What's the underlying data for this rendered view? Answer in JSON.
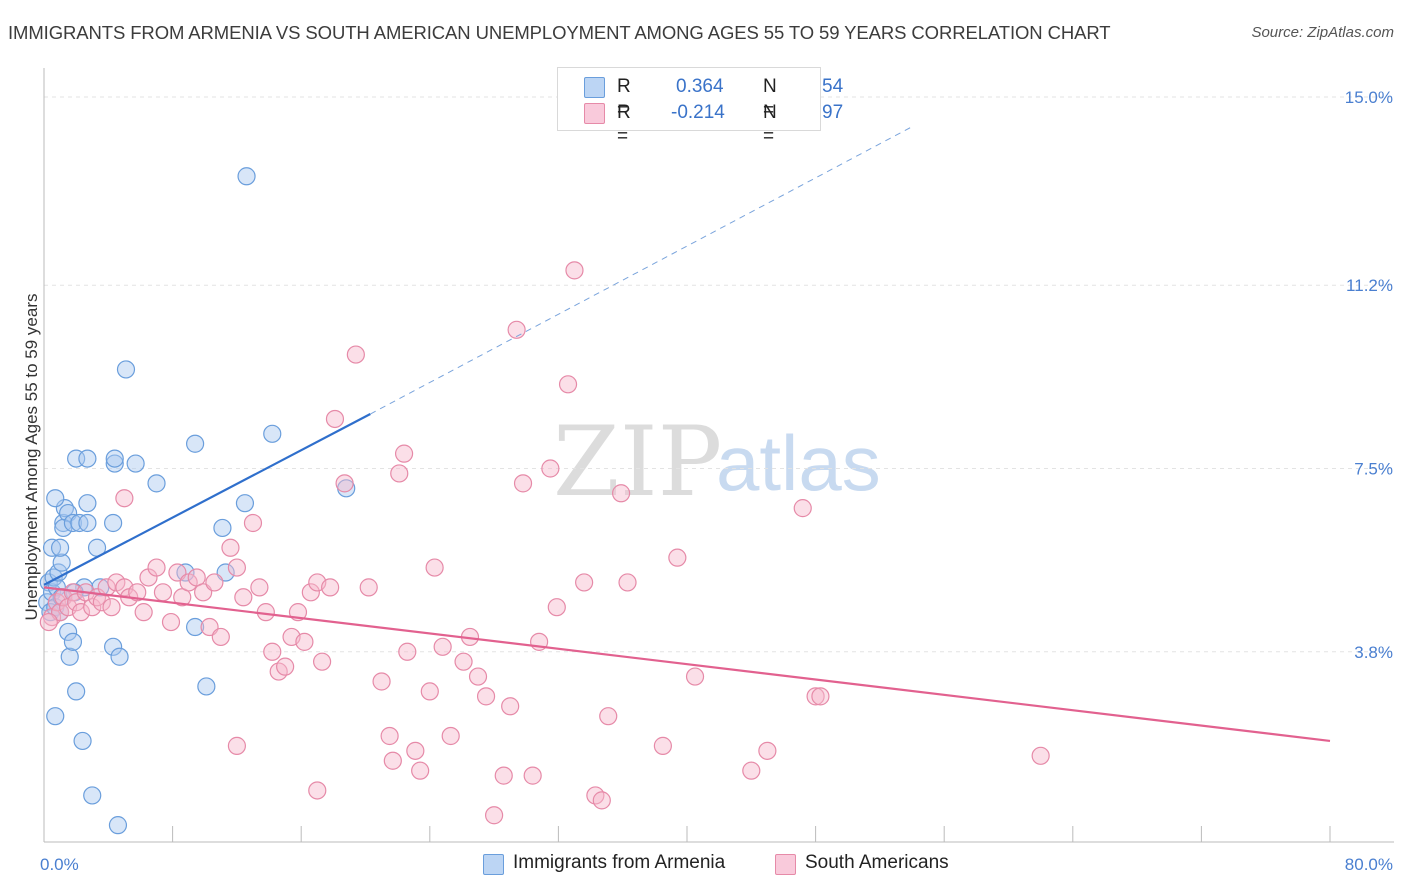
{
  "title": "IMMIGRANTS FROM ARMENIA VS SOUTH AMERICAN UNEMPLOYMENT AMONG AGES 55 TO 59 YEARS CORRELATION CHART",
  "source": "Source: ZipAtlas.com",
  "watermark": {
    "zip": "ZIP",
    "atlas": "atlas"
  },
  "legend": {
    "r_label": "R =",
    "n_label": "N =",
    "rows": [
      {
        "r": "0.364",
        "n": "54",
        "color": "#a8c8f0",
        "stroke": "#6a9edc"
      },
      {
        "r": "-0.214",
        "n": "97",
        "color": "#f7b8cc",
        "stroke": "#e68aa8"
      }
    ]
  },
  "bottom_legend": [
    {
      "label": "Immigrants from Armenia",
      "color": "#a8c8f0",
      "stroke": "#6a9edc"
    },
    {
      "label": "South Americans",
      "color": "#f7b8cc",
      "stroke": "#e68aa8"
    }
  ],
  "chart_data": {
    "type": "scatter",
    "title": "IMMIGRANTS FROM ARMENIA VS SOUTH AMERICAN UNEMPLOYMENT AMONG AGES 55 TO 59 YEARS CORRELATION CHART",
    "xlabel": "",
    "ylabel": "Unemployment Among Ages 55 to 59 years",
    "xlim": [
      0,
      80
    ],
    "ylim": [
      0,
      15.5
    ],
    "x_tick_labels": [
      "0.0%",
      "80.0%"
    ],
    "y_ticks": [
      3.8,
      7.5,
      11.2,
      15.0
    ],
    "y_tick_labels": [
      "3.8%",
      "7.5%",
      "11.2%",
      "15.0%"
    ],
    "grid": true,
    "legend_position": "top-center",
    "series": [
      {
        "name": "Immigrants from Armenia",
        "color": "#7fb0e8",
        "line_color": "#2f6fcc",
        "trend": {
          "x0": 0,
          "y0": 5.15,
          "x1": 20.3,
          "y1": 8.6,
          "dash_to_x": 54,
          "dash_to_y": 14.4
        },
        "points": [
          [
            0.2,
            4.8
          ],
          [
            0.3,
            5.2
          ],
          [
            0.4,
            4.6
          ],
          [
            0.5,
            5.0
          ],
          [
            0.6,
            5.3
          ],
          [
            0.7,
            4.7
          ],
          [
            0.8,
            5.1
          ],
          [
            0.5,
            5.9
          ],
          [
            0.9,
            5.4
          ],
          [
            1.0,
            4.6
          ],
          [
            1.1,
            5.6
          ],
          [
            1.2,
            6.4
          ],
          [
            1.3,
            6.7
          ],
          [
            1.0,
            5.9
          ],
          [
            0.7,
            6.9
          ],
          [
            1.5,
            6.6
          ],
          [
            1.2,
            6.3
          ],
          [
            1.8,
            6.4
          ],
          [
            2.0,
            7.7
          ],
          [
            2.2,
            6.4
          ],
          [
            2.7,
            6.4
          ],
          [
            2.7,
            6.8
          ],
          [
            2.7,
            7.7
          ],
          [
            3.3,
            5.9
          ],
          [
            3.5,
            5.1
          ],
          [
            4.3,
            6.4
          ],
          [
            4.4,
            7.6
          ],
          [
            4.4,
            7.7
          ],
          [
            4.3,
            3.9
          ],
          [
            4.7,
            3.7
          ],
          [
            5.1,
            9.5
          ],
          [
            5.7,
            7.6
          ],
          [
            7.0,
            7.2
          ],
          [
            8.8,
            5.4
          ],
          [
            9.4,
            4.3
          ],
          [
            9.4,
            8.0
          ],
          [
            10.1,
            3.1
          ],
          [
            11.1,
            6.3
          ],
          [
            11.3,
            5.4
          ],
          [
            12.6,
            13.4
          ],
          [
            12.5,
            6.8
          ],
          [
            14.2,
            8.2
          ],
          [
            18.8,
            7.1
          ],
          [
            1.5,
            4.2
          ],
          [
            1.6,
            3.7
          ],
          [
            1.8,
            4.0
          ],
          [
            2.0,
            3.0
          ],
          [
            2.4,
            2.0
          ],
          [
            0.7,
            2.5
          ],
          [
            3.0,
            0.9
          ],
          [
            4.6,
            0.3
          ],
          [
            2.5,
            5.1
          ],
          [
            1.1,
            4.9
          ],
          [
            1.9,
            5.0
          ]
        ]
      },
      {
        "name": "South Americans",
        "color": "#f5a8c1",
        "line_color": "#e2618f",
        "trend": {
          "x0": 0,
          "y0": 5.1,
          "x1": 80,
          "y1": 2.0
        },
        "points": [
          [
            0.5,
            4.5
          ],
          [
            0.8,
            4.8
          ],
          [
            1.0,
            4.6
          ],
          [
            1.2,
            4.9
          ],
          [
            1.5,
            4.7
          ],
          [
            1.8,
            5.0
          ],
          [
            2.0,
            4.8
          ],
          [
            2.3,
            4.6
          ],
          [
            2.6,
            5.0
          ],
          [
            3.0,
            4.7
          ],
          [
            3.3,
            4.9
          ],
          [
            3.6,
            4.8
          ],
          [
            3.9,
            5.1
          ],
          [
            4.2,
            4.7
          ],
          [
            4.5,
            5.2
          ],
          [
            5.0,
            5.1
          ],
          [
            5.3,
            4.9
          ],
          [
            5.8,
            5.0
          ],
          [
            6.2,
            4.6
          ],
          [
            6.5,
            5.3
          ],
          [
            7.0,
            5.5
          ],
          [
            7.4,
            5.0
          ],
          [
            7.9,
            4.4
          ],
          [
            8.3,
            5.4
          ],
          [
            8.6,
            4.9
          ],
          [
            9.0,
            5.2
          ],
          [
            9.5,
            5.3
          ],
          [
            9.9,
            5.0
          ],
          [
            10.3,
            4.3
          ],
          [
            10.6,
            5.2
          ],
          [
            11.0,
            4.1
          ],
          [
            11.6,
            5.9
          ],
          [
            12.0,
            5.5
          ],
          [
            12.4,
            4.9
          ],
          [
            13.0,
            6.4
          ],
          [
            13.4,
            5.1
          ],
          [
            13.8,
            4.6
          ],
          [
            14.2,
            3.8
          ],
          [
            14.6,
            3.4
          ],
          [
            15.0,
            3.5
          ],
          [
            15.4,
            4.1
          ],
          [
            15.8,
            4.6
          ],
          [
            16.2,
            4.0
          ],
          [
            16.6,
            5.0
          ],
          [
            17.0,
            5.2
          ],
          [
            17.3,
            3.6
          ],
          [
            17.8,
            5.1
          ],
          [
            18.1,
            8.5
          ],
          [
            18.7,
            7.2
          ],
          [
            19.4,
            9.8
          ],
          [
            20.2,
            5.1
          ],
          [
            21.0,
            3.2
          ],
          [
            21.5,
            2.1
          ],
          [
            22.1,
            7.4
          ],
          [
            22.4,
            7.8
          ],
          [
            22.6,
            3.8
          ],
          [
            23.1,
            1.8
          ],
          [
            23.4,
            1.4
          ],
          [
            24.0,
            3.0
          ],
          [
            24.3,
            5.5
          ],
          [
            24.8,
            3.9
          ],
          [
            25.3,
            2.1
          ],
          [
            26.1,
            3.6
          ],
          [
            26.5,
            4.1
          ],
          [
            27.0,
            3.3
          ],
          [
            27.5,
            2.9
          ],
          [
            28.6,
            1.3
          ],
          [
            29.0,
            2.7
          ],
          [
            29.4,
            10.3
          ],
          [
            29.8,
            7.2
          ],
          [
            30.4,
            1.3
          ],
          [
            30.8,
            4.0
          ],
          [
            31.5,
            7.5
          ],
          [
            31.9,
            4.7
          ],
          [
            32.6,
            9.2
          ],
          [
            33.0,
            11.5
          ],
          [
            33.6,
            5.2
          ],
          [
            34.3,
            0.9
          ],
          [
            34.7,
            0.8
          ],
          [
            35.1,
            2.5
          ],
          [
            35.9,
            7.0
          ],
          [
            36.3,
            5.2
          ],
          [
            38.5,
            1.9
          ],
          [
            39.4,
            5.7
          ],
          [
            40.5,
            3.3
          ],
          [
            44.0,
            1.4
          ],
          [
            45.0,
            1.8
          ],
          [
            47.2,
            6.7
          ],
          [
            48.0,
            2.9
          ],
          [
            48.3,
            2.9
          ],
          [
            62.0,
            1.7
          ],
          [
            5.0,
            6.9
          ],
          [
            12.0,
            1.9
          ],
          [
            17.0,
            1.0
          ],
          [
            21.7,
            1.6
          ],
          [
            28.0,
            0.5
          ],
          [
            0.3,
            4.4
          ]
        ]
      }
    ]
  }
}
